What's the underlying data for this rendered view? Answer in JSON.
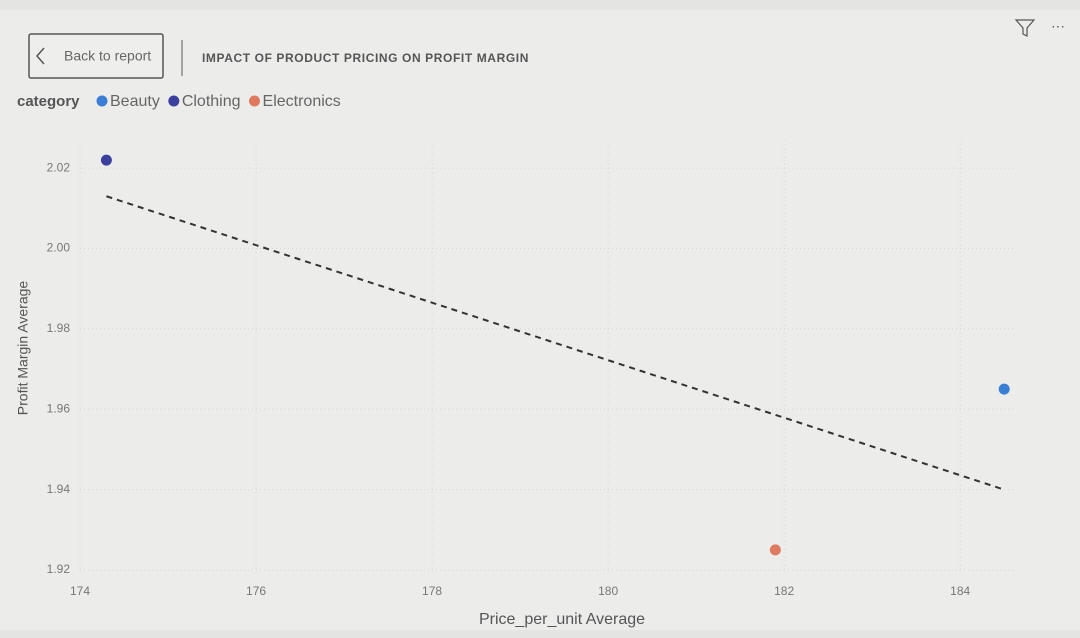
{
  "header": {
    "back_button": "Back to report"
  },
  "chart_data": {
    "type": "scatter",
    "title": "IMPACT OF PRODUCT PRICING ON PROFIT MARGIN",
    "legend_title": "category",
    "x_label": "Price_per_unit Average",
    "y_label": "Profit Margin Average",
    "series": [
      {
        "name": "Beauty",
        "color": "#3a7fd5",
        "x": [
          184.5
        ],
        "values": [
          1.965
        ]
      },
      {
        "name": "Clothing",
        "color": "#3b3f9e",
        "x": [
          174.3
        ],
        "values": [
          2.022
        ]
      },
      {
        "name": "Electronics",
        "color": "#e07a5f",
        "x": [
          181.9
        ],
        "values": [
          1.925
        ]
      }
    ],
    "trendline": {
      "x": [
        174.3,
        184.5
      ],
      "values": [
        2.013,
        1.94
      ]
    },
    "xlim": [
      174,
      184.6
    ],
    "xticks": [
      174,
      176,
      178,
      180,
      182,
      184
    ],
    "ylim": [
      1.92,
      2.027
    ],
    "yticks": [
      {
        "value": 1.92,
        "label": "1.92"
      },
      {
        "value": 1.94,
        "label": "1.94"
      },
      {
        "value": 1.96,
        "label": "1.96"
      },
      {
        "value": 1.98,
        "label": "1.98"
      },
      {
        "value": 2.0,
        "label": "2.00"
      },
      {
        "value": 2.02,
        "label": "2.02"
      }
    ],
    "grid": true
  }
}
